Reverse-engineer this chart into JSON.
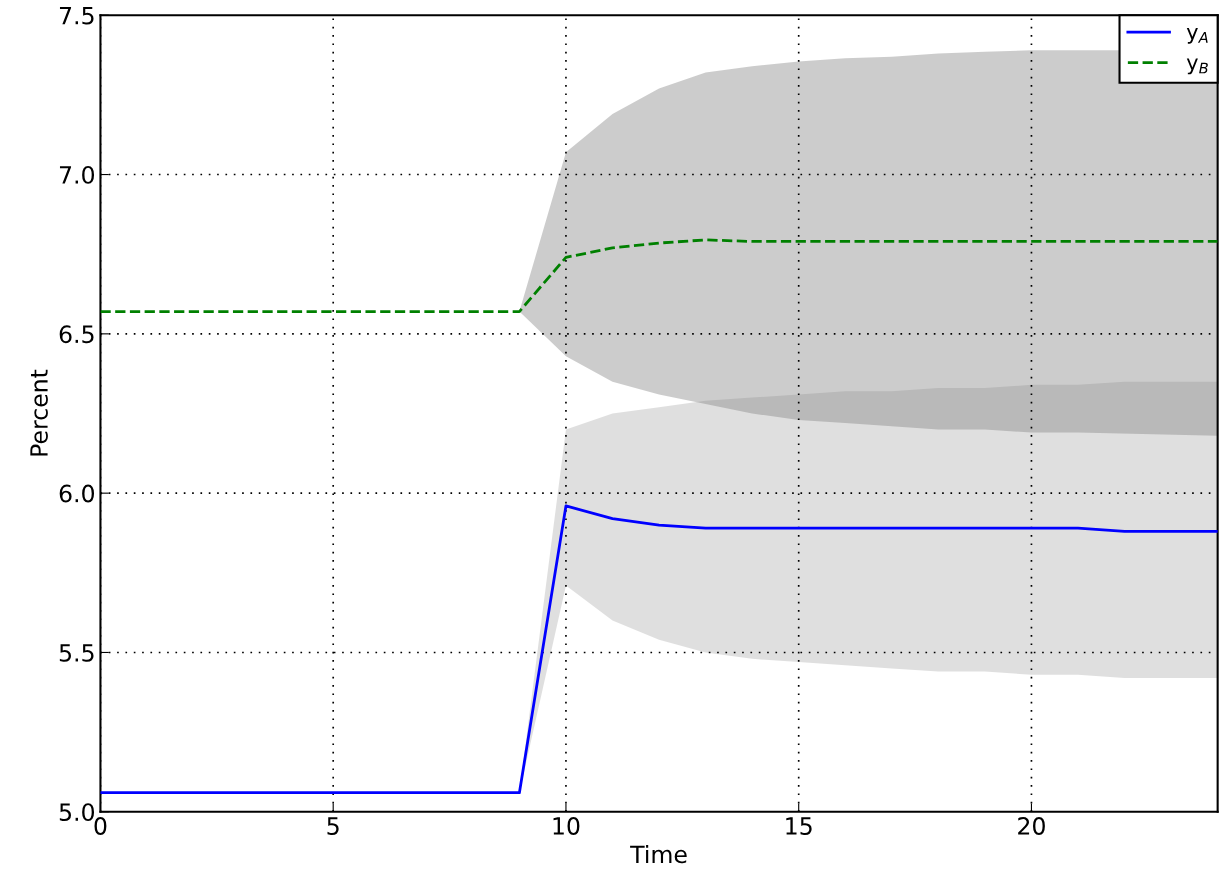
{
  "chart_data": {
    "type": "line",
    "xlabel": "Time",
    "ylabel": "Percent",
    "x": [
      0,
      1,
      2,
      3,
      4,
      5,
      6,
      7,
      8,
      9,
      10,
      11,
      12,
      13,
      14,
      15,
      16,
      17,
      18,
      19,
      20,
      21,
      22,
      23,
      24
    ],
    "series": [
      {
        "name": "y$_{A}$",
        "color": "#0000ff",
        "line_style": "solid",
        "values": [
          5.06,
          5.06,
          5.06,
          5.06,
          5.06,
          5.06,
          5.06,
          5.06,
          5.06,
          5.06,
          5.96,
          5.92,
          5.9,
          5.89,
          5.89,
          5.89,
          5.89,
          5.89,
          5.89,
          5.89,
          5.89,
          5.89,
          5.88,
          5.88,
          5.88
        ],
        "lower": [
          5.06,
          5.06,
          5.06,
          5.06,
          5.06,
          5.06,
          5.06,
          5.06,
          5.06,
          5.06,
          5.71,
          5.6,
          5.54,
          5.5,
          5.48,
          5.47,
          5.46,
          5.45,
          5.44,
          5.44,
          5.43,
          5.43,
          5.42,
          5.42,
          5.42
        ],
        "upper": [
          5.06,
          5.06,
          5.06,
          5.06,
          5.06,
          5.06,
          5.06,
          5.06,
          5.06,
          5.06,
          6.2,
          6.25,
          6.27,
          6.29,
          6.3,
          6.31,
          6.32,
          6.32,
          6.33,
          6.33,
          6.34,
          6.34,
          6.35,
          6.35,
          6.35
        ]
      },
      {
        "name": "y$_{B}$",
        "color": "#008000",
        "line_style": "dashed",
        "values": [
          6.57,
          6.57,
          6.57,
          6.57,
          6.57,
          6.57,
          6.57,
          6.57,
          6.57,
          6.57,
          6.74,
          6.77,
          6.785,
          6.795,
          6.79,
          6.79,
          6.79,
          6.79,
          6.79,
          6.79,
          6.79,
          6.79,
          6.79,
          6.79,
          6.79
        ],
        "lower": [
          6.57,
          6.57,
          6.57,
          6.57,
          6.57,
          6.57,
          6.57,
          6.57,
          6.57,
          6.57,
          6.43,
          6.35,
          6.31,
          6.28,
          6.25,
          6.23,
          6.22,
          6.21,
          6.2,
          6.2,
          6.19,
          6.19,
          null,
          null,
          6.18
        ],
        "upper": [
          6.57,
          6.57,
          6.57,
          6.57,
          6.57,
          6.57,
          6.57,
          6.57,
          6.57,
          6.57,
          7.07,
          7.19,
          7.27,
          7.32,
          7.34,
          7.355,
          7.365,
          7.37,
          7.38,
          7.385,
          7.39,
          7.39,
          null,
          null,
          7.39
        ]
      }
    ],
    "xlim": [
      0,
      24
    ],
    "xticks": [
      0,
      5,
      10,
      15,
      20
    ],
    "ylim": [
      5.0,
      7.5
    ],
    "yticks": [
      {
        "value": 5.0,
        "label": "5.0"
      },
      {
        "value": 5.5,
        "label": "5.5"
      },
      {
        "value": 6.0,
        "label": "6.0"
      },
      {
        "value": 6.5,
        "label": "6.5"
      },
      {
        "value": 7.0,
        "label": "7.0"
      },
      {
        "value": 7.5,
        "label": "7.5"
      }
    ],
    "grid": true,
    "legend": "top right"
  }
}
